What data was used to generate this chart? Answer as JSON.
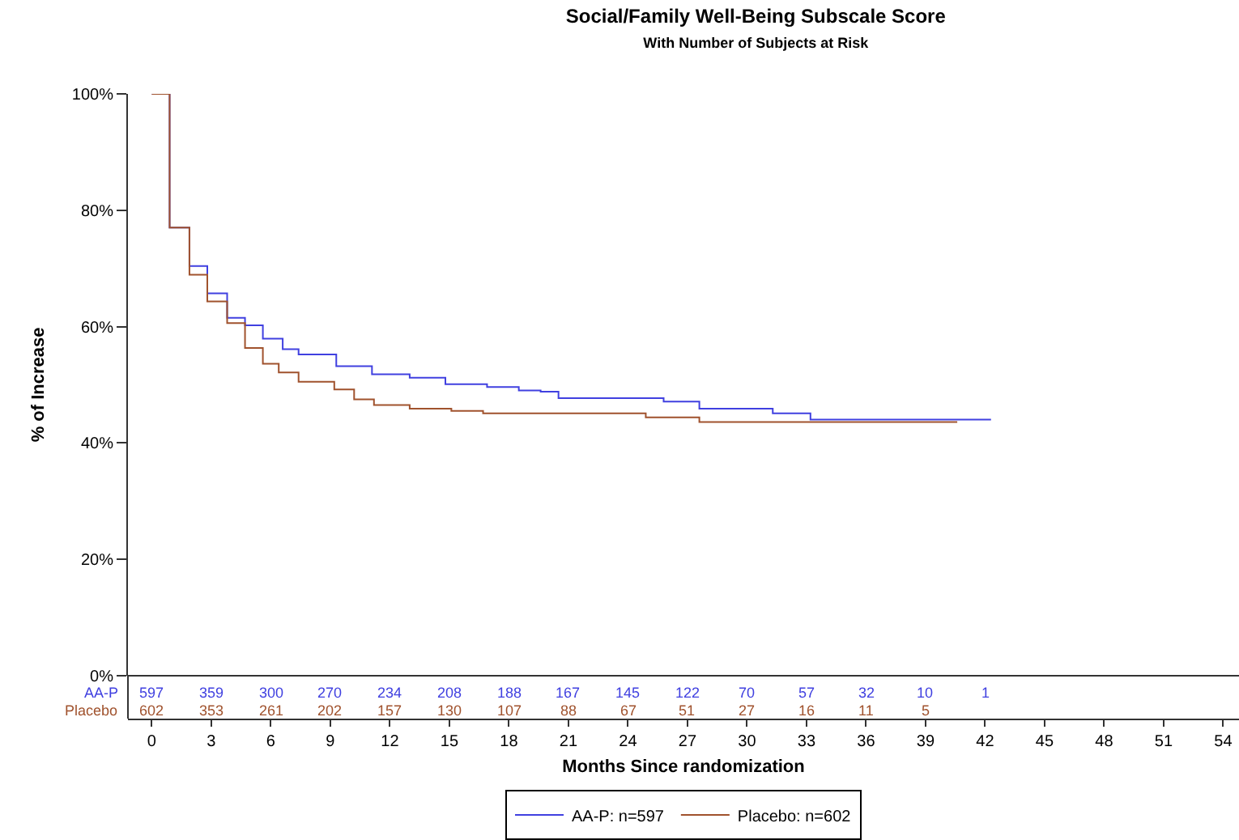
{
  "chart_data": {
    "type": "step",
    "title": "Social/Family Well-Being Subscale Score",
    "subtitle": "With Number of Subjects at Risk",
    "xlabel": "Months Since randomization",
    "ylabel": "% of Increase",
    "xlim": [
      -1.2,
      54.8
    ],
    "xticks": [
      0,
      3,
      6,
      9,
      12,
      15,
      18,
      21,
      24,
      27,
      30,
      33,
      36,
      39,
      42,
      45,
      48,
      51,
      54
    ],
    "ylim": [
      0,
      100
    ],
    "yticks": [
      {
        "value": 0,
        "label": "0%"
      },
      {
        "value": 20,
        "label": "20%"
      },
      {
        "value": 40,
        "label": "40%"
      },
      {
        "value": 60,
        "label": "60%"
      },
      {
        "value": 80,
        "label": "80%"
      },
      {
        "value": 100,
        "label": "100%"
      }
    ],
    "grid": false,
    "legend": "bottom",
    "marker": "none",
    "line_style": "solid",
    "series": [
      {
        "name": "AA-P: n=597",
        "color": "#4040e0",
        "x": [
          0,
          0.9,
          1.9,
          2.8,
          3.8,
          4.7,
          5.6,
          6.6,
          7.4,
          9.3,
          11.1,
          13,
          14.8,
          16.9,
          18.5,
          19.6,
          20.5,
          25.8,
          27.6,
          31.3,
          33.2,
          42.3
        ],
        "values": [
          100,
          77,
          70.4,
          65.7,
          61.5,
          60.2,
          57.9,
          56.1,
          55.2,
          53.2,
          51.8,
          51.2,
          50.1,
          49.6,
          49,
          48.8,
          47.7,
          47.1,
          45.9,
          45.1,
          44,
          44
        ]
      },
      {
        "name": "Placebo: n=602",
        "color": "#a0522d",
        "x": [
          0,
          0.9,
          1.9,
          2.8,
          3.8,
          4.7,
          5.6,
          6.4,
          7.4,
          9.2,
          10.2,
          11.2,
          13,
          15.1,
          16.7,
          24.9,
          27.6,
          40.6
        ],
        "values": [
          100,
          77,
          68.9,
          64.3,
          60.6,
          56.3,
          53.6,
          52.1,
          50.5,
          49.2,
          47.5,
          46.5,
          45.9,
          45.5,
          45.1,
          44.4,
          43.6,
          43.6
        ]
      }
    ],
    "annotations": [
      "AA-P",
      "597",
      "359",
      "300",
      "270",
      "234",
      "208",
      "188",
      "167",
      "145",
      "122",
      "70",
      "57",
      "32",
      "10",
      "1",
      "Placebo",
      "602",
      "353",
      "261",
      "202",
      "157",
      "130",
      "107",
      "88",
      "67",
      "51",
      "27",
      "16",
      "11",
      "5"
    ]
  }
}
